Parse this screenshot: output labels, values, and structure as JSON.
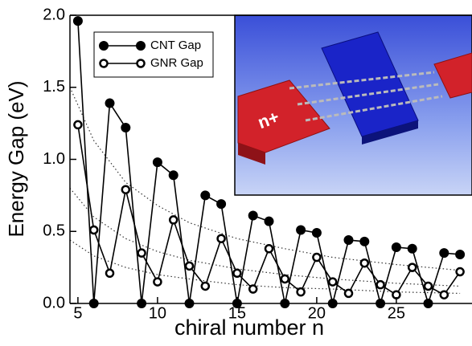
{
  "chart_data": {
    "type": "line",
    "xlabel": "chiral number n",
    "ylabel": "Energy Gap  (eV)",
    "x": [
      5,
      6,
      7,
      8,
      9,
      10,
      11,
      12,
      13,
      14,
      15,
      16,
      17,
      18,
      19,
      20,
      21,
      22,
      23,
      24,
      25,
      26,
      27,
      28,
      29
    ],
    "series": [
      {
        "name": "CNT Gap",
        "color": "#000000",
        "marker": "filled",
        "values": [
          1.96,
          0,
          1.39,
          1.22,
          0,
          0.98,
          0.89,
          0,
          0.75,
          0.69,
          0,
          0.61,
          0.57,
          0,
          0.51,
          0.49,
          0,
          0.44,
          0.43,
          0,
          0.39,
          0.38,
          0,
          0.35,
          0.34
        ]
      },
      {
        "name": "GNR Gap",
        "color": "#000000",
        "marker": "open",
        "values": [
          1.24,
          0.51,
          0.21,
          0.79,
          0.35,
          0.15,
          0.58,
          0.26,
          0.12,
          0.45,
          0.21,
          0.1,
          0.38,
          0.17,
          0.08,
          0.32,
          0.15,
          0.07,
          0.28,
          0.13,
          0.06,
          0.25,
          0.12,
          0.06,
          0.22
        ]
      }
    ],
    "reference_curves": [
      {
        "x": [
          4.5,
          6,
          8,
          10,
          12,
          15,
          18,
          21,
          25,
          29
        ],
        "values": [
          1.5,
          1.13,
          0.84,
          0.68,
          0.56,
          0.45,
          0.38,
          0.32,
          0.27,
          0.23
        ]
      },
      {
        "x": [
          4.5,
          6,
          8,
          10,
          12,
          15,
          18,
          21,
          25,
          29
        ],
        "values": [
          0.8,
          0.6,
          0.45,
          0.36,
          0.3,
          0.24,
          0.2,
          0.17,
          0.14,
          0.12
        ]
      },
      {
        "x": [
          4.5,
          6,
          8,
          10,
          12,
          15,
          18,
          21,
          25,
          29
        ],
        "values": [
          0.44,
          0.33,
          0.25,
          0.2,
          0.17,
          0.13,
          0.11,
          0.1,
          0.08,
          0.07
        ]
      }
    ],
    "xlim": [
      4.5,
      29.5
    ],
    "xticks": [
      5,
      10,
      15,
      20,
      25
    ],
    "ylim": [
      0,
      2
    ],
    "yticks": [
      {
        "value": 0,
        "label": "0.0"
      },
      0.5,
      {
        "value": 1,
        "label": "1.0"
      },
      1.5,
      {
        "value": 2,
        "label": "2.0"
      }
    ],
    "legend": "upper left",
    "inset_label": "n+"
  }
}
